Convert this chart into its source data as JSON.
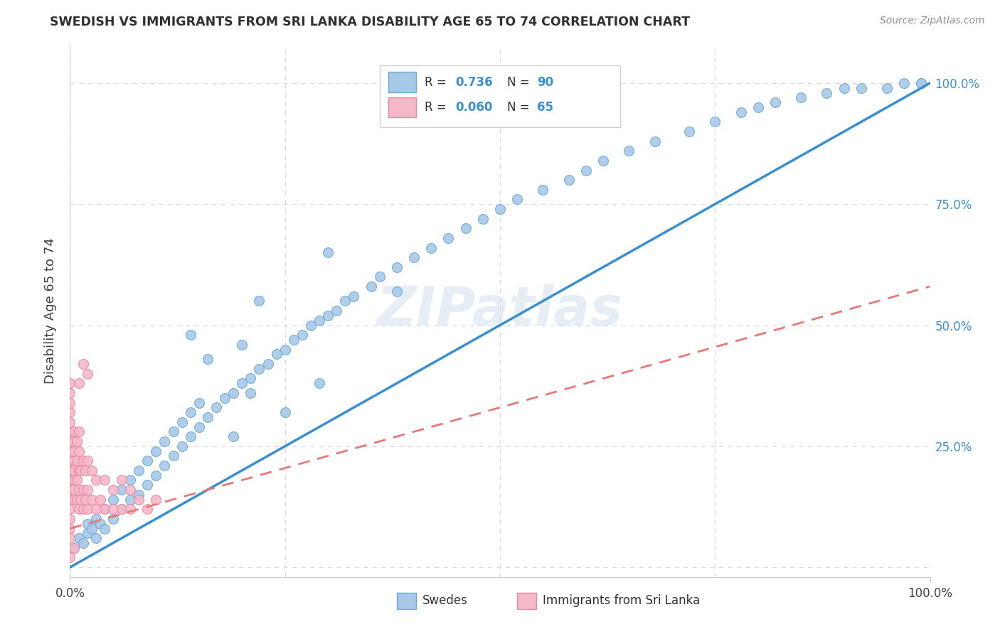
{
  "title": "SWEDISH VS IMMIGRANTS FROM SRI LANKA DISABILITY AGE 65 TO 74 CORRELATION CHART",
  "source": "Source: ZipAtlas.com",
  "ylabel": "Disability Age 65 to 74",
  "xlim": [
    0.0,
    1.0
  ],
  "ylim": [
    -0.02,
    1.08
  ],
  "swedes_color": "#a8c8e8",
  "swedes_edge": "#6aaad4",
  "immigrants_color": "#f4b8c8",
  "immigrants_edge": "#e888a0",
  "trendline_swedes_color": "#3a8fd0",
  "trendline_immigrants_color": "#e87878",
  "watermark": "ZIPatlas",
  "background_color": "#ffffff",
  "grid_color": "#d8d8e8",
  "title_color": "#303030",
  "axis_label_color": "#3a8fd0",
  "ylabel_color": "#404040",
  "source_color": "#909090",
  "legend_r_swedes": "0.736",
  "legend_n_swedes": "90",
  "legend_r_immigrants": "0.060",
  "legend_n_immigrants": "65",
  "swedes_x": [
    0.005,
    0.01,
    0.015,
    0.02,
    0.02,
    0.025,
    0.03,
    0.03,
    0.035,
    0.04,
    0.04,
    0.05,
    0.05,
    0.06,
    0.06,
    0.07,
    0.07,
    0.08,
    0.08,
    0.09,
    0.09,
    0.1,
    0.1,
    0.11,
    0.11,
    0.12,
    0.12,
    0.13,
    0.13,
    0.14,
    0.14,
    0.15,
    0.15,
    0.16,
    0.17,
    0.18,
    0.19,
    0.2,
    0.21,
    0.22,
    0.23,
    0.24,
    0.25,
    0.26,
    0.27,
    0.28,
    0.29,
    0.3,
    0.31,
    0.32,
    0.33,
    0.35,
    0.36,
    0.38,
    0.4,
    0.42,
    0.44,
    0.46,
    0.48,
    0.5,
    0.52,
    0.55,
    0.58,
    0.6,
    0.62,
    0.65,
    0.68,
    0.72,
    0.75,
    0.78,
    0.8,
    0.82,
    0.85,
    0.88,
    0.9,
    0.92,
    0.95,
    0.97,
    0.99,
    0.99,
    0.38,
    0.2,
    0.29,
    0.22,
    0.16,
    0.14,
    0.25,
    0.19,
    0.21,
    0.3
  ],
  "swedes_y": [
    0.04,
    0.06,
    0.05,
    0.07,
    0.09,
    0.08,
    0.06,
    0.1,
    0.09,
    0.08,
    0.12,
    0.1,
    0.14,
    0.12,
    0.16,
    0.14,
    0.18,
    0.15,
    0.2,
    0.17,
    0.22,
    0.19,
    0.24,
    0.21,
    0.26,
    0.23,
    0.28,
    0.25,
    0.3,
    0.27,
    0.32,
    0.29,
    0.34,
    0.31,
    0.33,
    0.35,
    0.36,
    0.38,
    0.39,
    0.41,
    0.42,
    0.44,
    0.45,
    0.47,
    0.48,
    0.5,
    0.51,
    0.52,
    0.53,
    0.55,
    0.56,
    0.58,
    0.6,
    0.62,
    0.64,
    0.66,
    0.68,
    0.7,
    0.72,
    0.74,
    0.76,
    0.78,
    0.8,
    0.82,
    0.84,
    0.86,
    0.88,
    0.9,
    0.92,
    0.94,
    0.95,
    0.96,
    0.97,
    0.98,
    0.99,
    0.99,
    0.99,
    1.0,
    1.0,
    1.0,
    0.57,
    0.46,
    0.38,
    0.55,
    0.43,
    0.48,
    0.32,
    0.27,
    0.36,
    0.65
  ],
  "immigrants_x": [
    0.0,
    0.0,
    0.0,
    0.0,
    0.0,
    0.0,
    0.0,
    0.0,
    0.0,
    0.0,
    0.0,
    0.0,
    0.0,
    0.0,
    0.0,
    0.0,
    0.0,
    0.005,
    0.005,
    0.005,
    0.005,
    0.005,
    0.005,
    0.005,
    0.005,
    0.008,
    0.008,
    0.008,
    0.008,
    0.01,
    0.01,
    0.01,
    0.01,
    0.01,
    0.012,
    0.012,
    0.015,
    0.015,
    0.015,
    0.018,
    0.018,
    0.02,
    0.02,
    0.02,
    0.025,
    0.025,
    0.03,
    0.03,
    0.035,
    0.04,
    0.04,
    0.05,
    0.05,
    0.06,
    0.06,
    0.07,
    0.07,
    0.08,
    0.09,
    0.1,
    0.02,
    0.015,
    0.01,
    0.005,
    0.0
  ],
  "immigrants_y": [
    0.14,
    0.16,
    0.18,
    0.2,
    0.22,
    0.24,
    0.26,
    0.28,
    0.3,
    0.32,
    0.12,
    0.1,
    0.08,
    0.34,
    0.36,
    0.38,
    0.06,
    0.14,
    0.16,
    0.18,
    0.2,
    0.22,
    0.24,
    0.26,
    0.28,
    0.14,
    0.18,
    0.22,
    0.26,
    0.12,
    0.16,
    0.2,
    0.24,
    0.28,
    0.14,
    0.2,
    0.12,
    0.16,
    0.22,
    0.14,
    0.2,
    0.12,
    0.16,
    0.22,
    0.14,
    0.2,
    0.12,
    0.18,
    0.14,
    0.12,
    0.18,
    0.12,
    0.16,
    0.12,
    0.18,
    0.12,
    0.16,
    0.14,
    0.12,
    0.14,
    0.4,
    0.42,
    0.38,
    0.04,
    0.02
  ],
  "trend_swedes": [
    0.0,
    0.0,
    1.0,
    1.0
  ],
  "trend_immigrants_start_y": 0.08,
  "trend_immigrants_end_y": 0.58
}
